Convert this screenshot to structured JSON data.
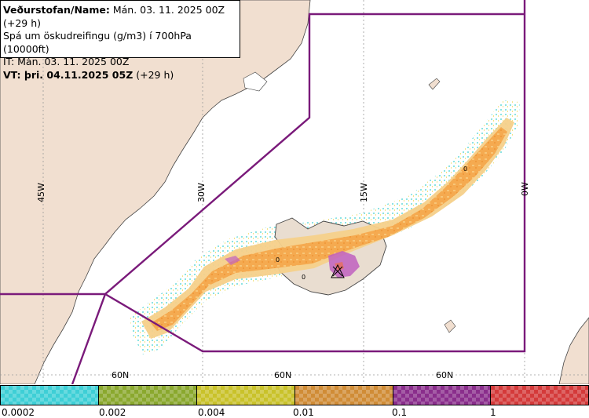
{
  "info": {
    "line1_bold": "Veðurstofan/Name:",
    "line1_rest": " Mán. 03. 11. 2025 00Z (+29 h)",
    "line2": "Spá um öskudreifingu (g/m3) í 700hPa (10000ft)",
    "line3": "IT: Mán. 03. 11. 2025 00Z",
    "line4_bold": "VT: þri. 04.11.2025 05Z",
    "line4_rest": " (+29 h)"
  },
  "graticule": {
    "lon_labels": [
      "45W",
      "30W",
      "15W",
      "0W"
    ],
    "lat_labels": [
      "60N",
      "60N",
      "60N"
    ],
    "contour_labels": [
      "0",
      "0",
      "0"
    ]
  },
  "legend": {
    "colors": [
      "#3ecfd6",
      "#8aa82e",
      "#c9c22a",
      "#d08c36",
      "#8a2e8c",
      "#d43a3a"
    ],
    "ticks": [
      "0.0002",
      "0.002",
      "0.004",
      "0.01",
      "0.1",
      "1"
    ]
  },
  "colors": {
    "land": "#f1dfd0",
    "sea": "#ffffff",
    "fir_boundary": "#7a1a7a",
    "ash_low": "#f5d08a",
    "ash_mid": "#f5aa50",
    "ash_high": "#c060c0"
  }
}
